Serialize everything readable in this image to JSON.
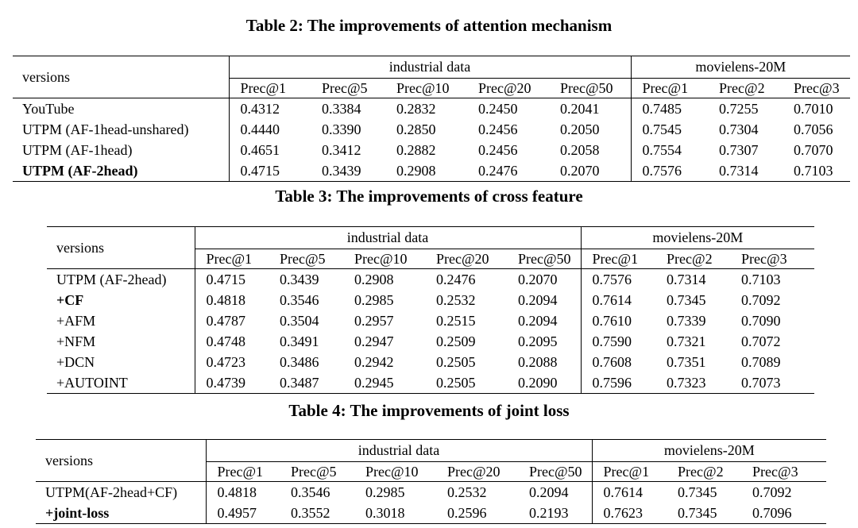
{
  "table2": {
    "caption": "Table 2: The improvements of attention mechanism",
    "versions_header": "versions",
    "group1": "industrial data",
    "group2": "movielens-20M",
    "cols": [
      "Prec@1",
      "Prec@5",
      "Prec@10",
      "Prec@20",
      "Prec@50",
      "Prec@1",
      "Prec@2",
      "Prec@3"
    ],
    "rows": [
      {
        "label": "YouTube",
        "vals": [
          "0.4312",
          "0.3384",
          "0.2832",
          "0.2450",
          "0.2041",
          "0.7485",
          "0.7255",
          "0.7010"
        ]
      },
      {
        "label": "UTPM (AF-1head-unshared)",
        "vals": [
          "0.4440",
          "0.3390",
          "0.2850",
          "0.2456",
          "0.2050",
          "0.7545",
          "0.7304",
          "0.7056"
        ]
      },
      {
        "label": "UTPM (AF-1head)",
        "vals": [
          "0.4651",
          "0.3412",
          "0.2882",
          "0.2456",
          "0.2058",
          "0.7554",
          "0.7307",
          "0.7070"
        ]
      },
      {
        "label": "UTPM (AF-2head)",
        "vals": [
          "0.4715",
          "0.3439",
          "0.2908",
          "0.2476",
          "0.2070",
          "0.7576",
          "0.7314",
          "0.7103"
        ]
      }
    ]
  },
  "table3": {
    "caption": "Table 3: The improvements of cross feature",
    "versions_header": "versions",
    "group1": "industrial data",
    "group2": "movielens-20M",
    "cols": [
      "Prec@1",
      "Prec@5",
      "Prec@10",
      "Prec@20",
      "Prec@50",
      "Prec@1",
      "Prec@2",
      "Prec@3"
    ],
    "rows": [
      {
        "label": "UTPM (AF-2head)",
        "vals": [
          "0.4715",
          "0.3439",
          "0.2908",
          "0.2476",
          "0.2070",
          "0.7576",
          "0.7314",
          "0.7103"
        ]
      },
      {
        "label": "+CF",
        "vals": [
          "0.4818",
          "0.3546",
          "0.2985",
          "0.2532",
          "0.2094",
          "0.7614",
          "0.7345",
          "0.7092"
        ]
      },
      {
        "label": "+AFM",
        "vals": [
          "0.4787",
          "0.3504",
          "0.2957",
          "0.2515",
          "0.2094",
          "0.7610",
          "0.7339",
          "0.7090"
        ]
      },
      {
        "label": "+NFM",
        "vals": [
          "0.4748",
          "0.3491",
          "0.2947",
          "0.2509",
          "0.2095",
          "0.7590",
          "0.7321",
          "0.7072"
        ]
      },
      {
        "label": "+DCN",
        "vals": [
          "0.4723",
          "0.3486",
          "0.2942",
          "0.2505",
          "0.2088",
          "0.7608",
          "0.7351",
          "0.7089"
        ]
      },
      {
        "label": "+AUTOINT",
        "vals": [
          "0.4739",
          "0.3487",
          "0.2945",
          "0.2505",
          "0.2090",
          "0.7596",
          "0.7323",
          "0.7073"
        ]
      }
    ]
  },
  "table4": {
    "caption": "Table 4: The improvements of joint loss",
    "versions_header": "versions",
    "group1": "industrial data",
    "group2": "movielens-20M",
    "cols": [
      "Prec@1",
      "Prec@5",
      "Prec@10",
      "Prec@20",
      "Prec@50",
      "Prec@1",
      "Prec@2",
      "Prec@3"
    ],
    "rows": [
      {
        "label": "UTPM(AF-2head+CF)",
        "vals": [
          "0.4818",
          "0.3546",
          "0.2985",
          "0.2532",
          "0.2094",
          "0.7614",
          "0.7345",
          "0.7092"
        ]
      },
      {
        "label": "+joint-loss",
        "vals": [
          "0.4957",
          "0.3552",
          "0.3018",
          "0.2596",
          "0.2193",
          "0.7623",
          "0.7345",
          "0.7096"
        ]
      }
    ]
  }
}
